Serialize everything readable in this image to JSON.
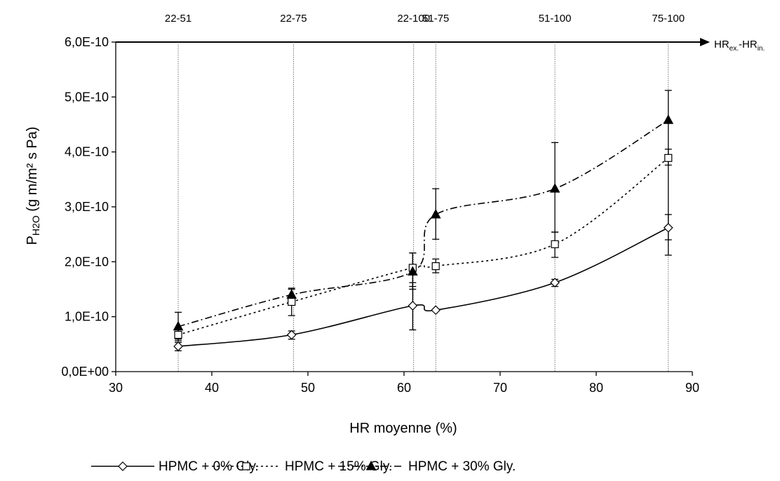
{
  "chart_data": {
    "type": "line",
    "xlabel": "HR moyenne (%)",
    "ylabel_main": "P",
    "ylabel_sub": "H2O",
    "ylabel_rest": " (g m/m² s Pa)",
    "xlim": [
      30,
      90
    ],
    "ylim": [
      0,
      6e-10
    ],
    "x_ticks": [
      30,
      40,
      50,
      60,
      70,
      80,
      90
    ],
    "y_ticks": [
      0,
      1e-10,
      2e-10,
      3e-10,
      4e-10,
      5e-10,
      6e-10
    ],
    "y_tick_labels": [
      "0,0E+00",
      "1,0E-10",
      "2,0E-10",
      "3,0E-10",
      "4,0E-10",
      "5,0E-10",
      "6,0E-10"
    ],
    "top_axis": {
      "label_main": "HR",
      "label_sub1": "ex.",
      "label_mid": "-HR",
      "label_sub2": "in.",
      "markers": [
        {
          "x": 36.5,
          "label": "22-51"
        },
        {
          "x": 48.5,
          "label": "22-75"
        },
        {
          "x": 61,
          "label": "22-100"
        },
        {
          "x": 63.3,
          "label": "51-75"
        },
        {
          "x": 75.7,
          "label": "51-100"
        },
        {
          "x": 87.5,
          "label": "75-100"
        }
      ]
    },
    "x": [
      36.5,
      48.3,
      60.9,
      63.3,
      75.7,
      87.5
    ],
    "series": [
      {
        "name": "HPMC + 0% Gly.",
        "marker": "diamond-open",
        "dash": "solid",
        "values": [
          4.6e-11,
          6.7e-11,
          1.2e-10,
          1.12e-10,
          1.62e-10,
          2.62e-10
        ],
        "err_low": [
          3.8e-11,
          5.9e-11,
          7.6e-11,
          1.12e-10,
          1.55e-10,
          2.4e-10
        ],
        "err_high": [
          5.3e-11,
          7.4e-11,
          1.62e-10,
          1.12e-10,
          1.68e-10,
          2.86e-10
        ]
      },
      {
        "name": "HPMC + 15% Gly.",
        "marker": "square-open",
        "dash": "dotted",
        "values": [
          6.7e-11,
          1.27e-10,
          1.89e-10,
          1.92e-10,
          2.32e-10,
          3.89e-10
        ],
        "err_low": [
          5.9e-11,
          1.02e-10,
          1.55e-10,
          1.8e-10,
          2.08e-10,
          2.12e-10
        ],
        "err_high": [
          7.6e-11,
          1.52e-10,
          2.16e-10,
          2.05e-10,
          2.54e-10,
          4.05e-10
        ]
      },
      {
        "name": "HPMC + 30% Gly.",
        "marker": "triangle-filled",
        "dash": "dashdot",
        "values": [
          8.2e-11,
          1.4e-10,
          1.82e-10,
          2.86e-10,
          3.33e-10,
          4.58e-10
        ],
        "err_low": [
          5.6e-11,
          1.3e-10,
          1.5e-10,
          2.41e-10,
          2.54e-10,
          3.76e-10
        ],
        "err_high": [
          1.08e-10,
          1.5e-10,
          2.16e-10,
          3.33e-10,
          4.17e-10,
          5.12e-10
        ]
      }
    ],
    "grid": false,
    "legend_position": "bottom"
  }
}
